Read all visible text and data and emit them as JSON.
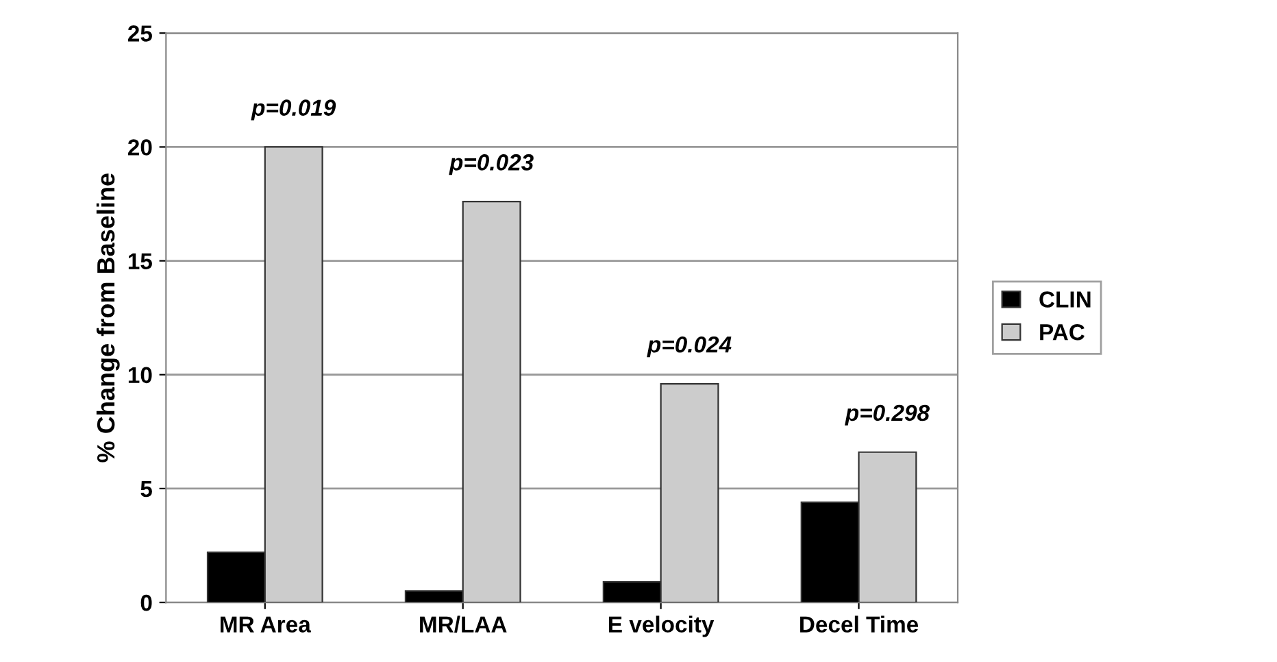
{
  "chart_data": {
    "type": "bar",
    "ylabel": "% Change from Baseline",
    "categories": [
      "MR Area",
      "MR/LAA",
      "E velocity",
      "Decel Time"
    ],
    "series": [
      {
        "name": "CLIN",
        "color": "#000000",
        "values": [
          2.2,
          0.5,
          0.9,
          4.4
        ]
      },
      {
        "name": "PAC",
        "color": "#cccccc",
        "values": [
          20,
          17.6,
          9.6,
          6.6
        ]
      }
    ],
    "ylim": [
      0,
      25
    ],
    "yticks": [
      0,
      5,
      10,
      15,
      20,
      25
    ],
    "grid": "y",
    "legend": "right",
    "annotations": [
      {
        "text": "p=0.019",
        "x": "MR Area",
        "y": 20
      },
      {
        "text": "p=0.023",
        "x": "MR/LAA",
        "y": 17.6
      },
      {
        "text": "p=0.024",
        "x": "E velocity",
        "y": 9.6
      },
      {
        "text": "p=0.298",
        "x": "Decel Time",
        "y": 6.6
      }
    ]
  }
}
